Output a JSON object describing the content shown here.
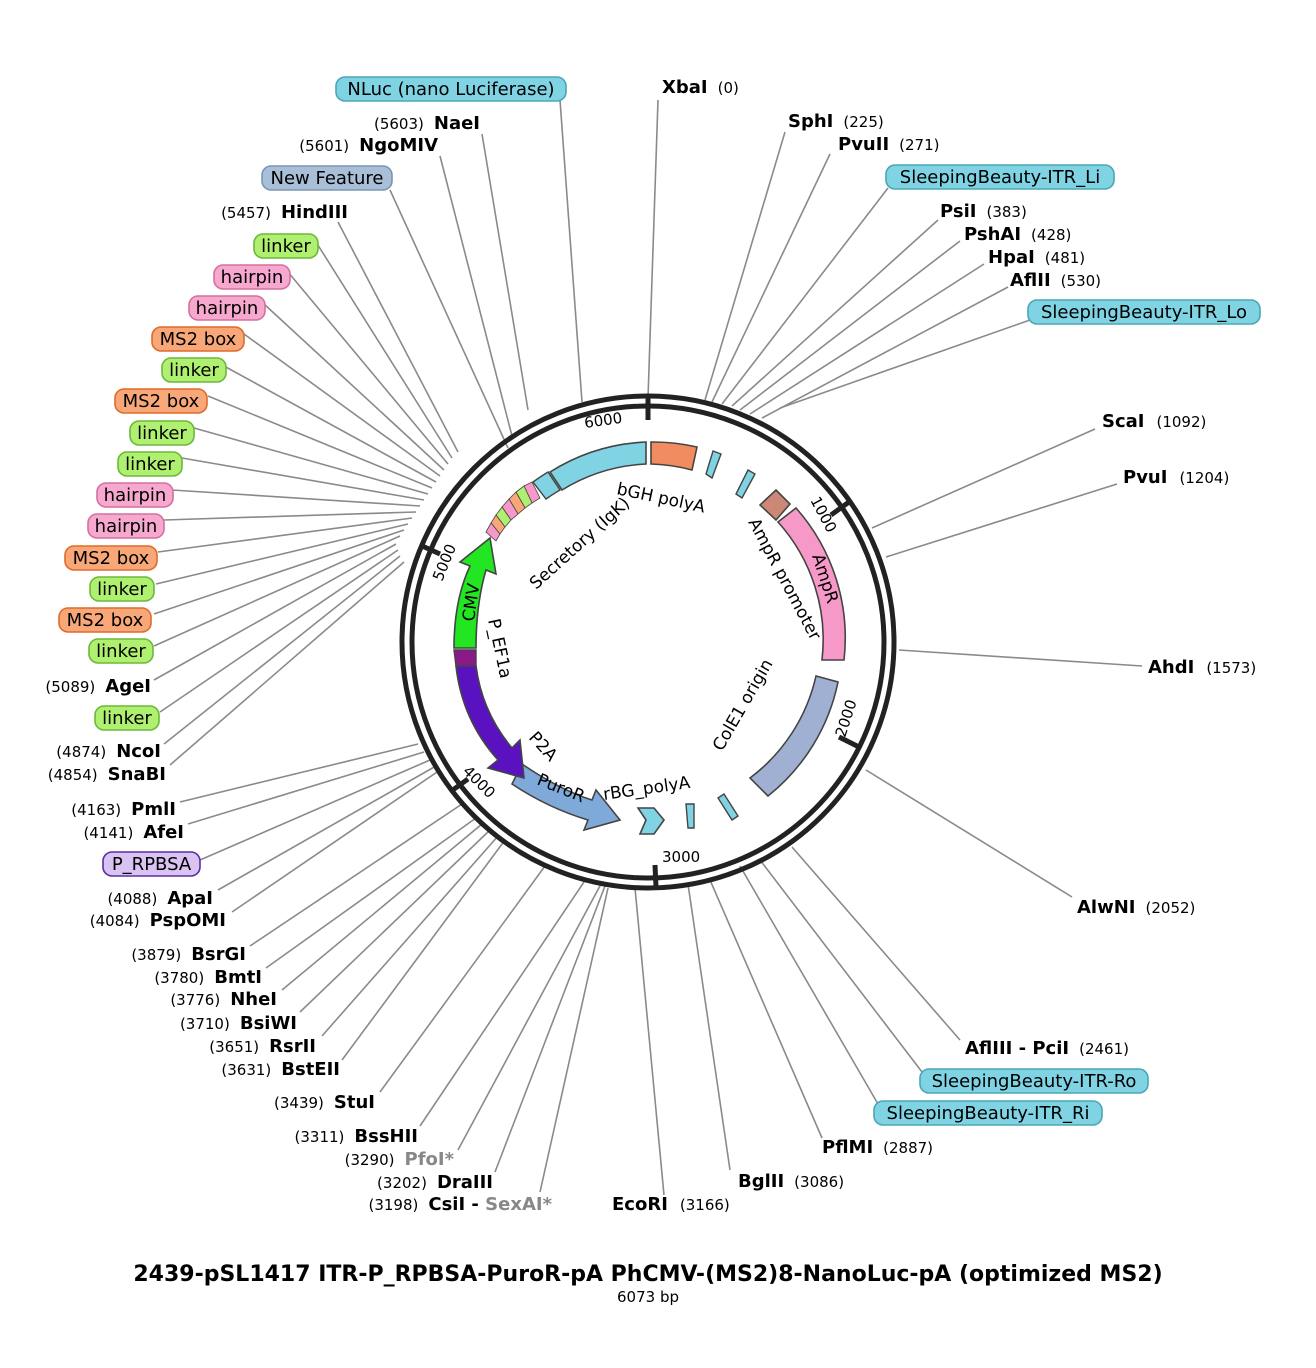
{
  "title": "2439-pSL1417 ITR-P_RPBSA-PuroR-pA PhCMV-(MS2)8-NanoLuc-pA (optimized MS2)",
  "length_label": "6073 bp",
  "ticks": [
    "1000",
    "2000",
    "3000",
    "4000",
    "5000",
    "6000"
  ],
  "sites": [
    {
      "name": "XbaI",
      "pos": "(0)"
    },
    {
      "name": "SphI",
      "pos": "(225)"
    },
    {
      "name": "PvuII",
      "pos": "(271)"
    },
    {
      "name": "PsiI",
      "pos": "(383)"
    },
    {
      "name": "PshAI",
      "pos": "(428)"
    },
    {
      "name": "HpaI",
      "pos": "(481)"
    },
    {
      "name": "AflII",
      "pos": "(530)"
    },
    {
      "name": "ScaI",
      "pos": "(1092)"
    },
    {
      "name": "PvuI",
      "pos": "(1204)"
    },
    {
      "name": "AhdI",
      "pos": "(1573)"
    },
    {
      "name": "AlwNI",
      "pos": "(2052)"
    },
    {
      "name": "AflIII - PciI",
      "pos": "(2461)"
    },
    {
      "name": "PflMI",
      "pos": "(2887)"
    },
    {
      "name": "BglII",
      "pos": "(3086)"
    },
    {
      "name": "EcoRI",
      "pos": "(3166)"
    },
    {
      "name": "CsiI",
      "pos": "(3198)",
      "name2": "SexAI*"
    },
    {
      "name": "DraIII",
      "pos": "(3202)"
    },
    {
      "name": "PfoI*",
      "pos": "(3290)"
    },
    {
      "name": "BssHII",
      "pos": "(3311)"
    },
    {
      "name": "StuI",
      "pos": "(3439)"
    },
    {
      "name": "BstEII",
      "pos": "(3631)"
    },
    {
      "name": "RsrII",
      "pos": "(3651)"
    },
    {
      "name": "BsiWI",
      "pos": "(3710)"
    },
    {
      "name": "NheI",
      "pos": "(3776)"
    },
    {
      "name": "BmtI",
      "pos": "(3780)"
    },
    {
      "name": "BsrGI",
      "pos": "(3879)"
    },
    {
      "name": "PspOMI",
      "pos": "(4084)"
    },
    {
      "name": "ApaI",
      "pos": "(4088)"
    },
    {
      "name": "AfeI",
      "pos": "(4141)"
    },
    {
      "name": "PmlI",
      "pos": "(4163)"
    },
    {
      "name": "SnaBI",
      "pos": "(4854)"
    },
    {
      "name": "NcoI",
      "pos": "(4874)"
    },
    {
      "name": "AgeI",
      "pos": "(5089)"
    },
    {
      "name": "HindIII",
      "pos": "(5457)"
    },
    {
      "name": "NgoMIV",
      "pos": "(5601)"
    },
    {
      "name": "NaeI",
      "pos": "(5603)"
    }
  ],
  "pills": [
    {
      "label": "NLuc (nano Luciferase)",
      "color": "#7fd3e3"
    },
    {
      "label": "New Feature",
      "color": "#a9bfd8"
    },
    {
      "label": "SleepingBeauty-ITR_Li",
      "color": "#7fd3e3"
    },
    {
      "label": "SleepingBeauty-ITR_Lo",
      "color": "#7fd3e3"
    },
    {
      "label": "SleepingBeauty-ITR-Ro",
      "color": "#7fd3e3"
    },
    {
      "label": "SleepingBeauty-ITR_Ri",
      "color": "#7fd3e3"
    },
    {
      "label": "P_RPBSA",
      "color": "#d8c3f2"
    },
    {
      "label": "linker",
      "color": "#b0f070"
    },
    {
      "label": "hairpin",
      "color": "#f7a8cf"
    },
    {
      "label": "hairpin",
      "color": "#f7a8cf"
    },
    {
      "label": "MS2 box",
      "color": "#f8a878"
    },
    {
      "label": "linker",
      "color": "#b0f070"
    },
    {
      "label": "MS2 box",
      "color": "#f8a878"
    },
    {
      "label": "linker",
      "color": "#b0f070"
    },
    {
      "label": "linker",
      "color": "#b0f070"
    },
    {
      "label": "hairpin",
      "color": "#f7a8cf"
    },
    {
      "label": "hairpin",
      "color": "#f7a8cf"
    },
    {
      "label": "MS2 box",
      "color": "#f8a878"
    },
    {
      "label": "linker",
      "color": "#b0f070"
    },
    {
      "label": "MS2 box",
      "color": "#f8a878"
    },
    {
      "label": "linker",
      "color": "#b0f070"
    },
    {
      "label": "linker",
      "color": "#b0f070"
    }
  ],
  "features": [
    {
      "label": "bGH polyA",
      "color": "#f08c60"
    },
    {
      "label": "AmpR",
      "color": "#f799c8"
    },
    {
      "label": "AmpR promoter",
      "color": "#cc8877"
    },
    {
      "label": "ColE1 origin",
      "color": "#9fb0d2"
    },
    {
      "label": "rBG_polyA",
      "color": "#7fd3e3"
    },
    {
      "label": "PuroR",
      "color": "#7fa9d9"
    },
    {
      "label": "P2A",
      "color": "#5a12c0"
    },
    {
      "label": "P_EF1a",
      "color": "#8a1a8a"
    },
    {
      "label": "CMV",
      "color": "#22e622"
    },
    {
      "label": "Secretory (IgK)",
      "color": "#7fd3e3"
    }
  ]
}
